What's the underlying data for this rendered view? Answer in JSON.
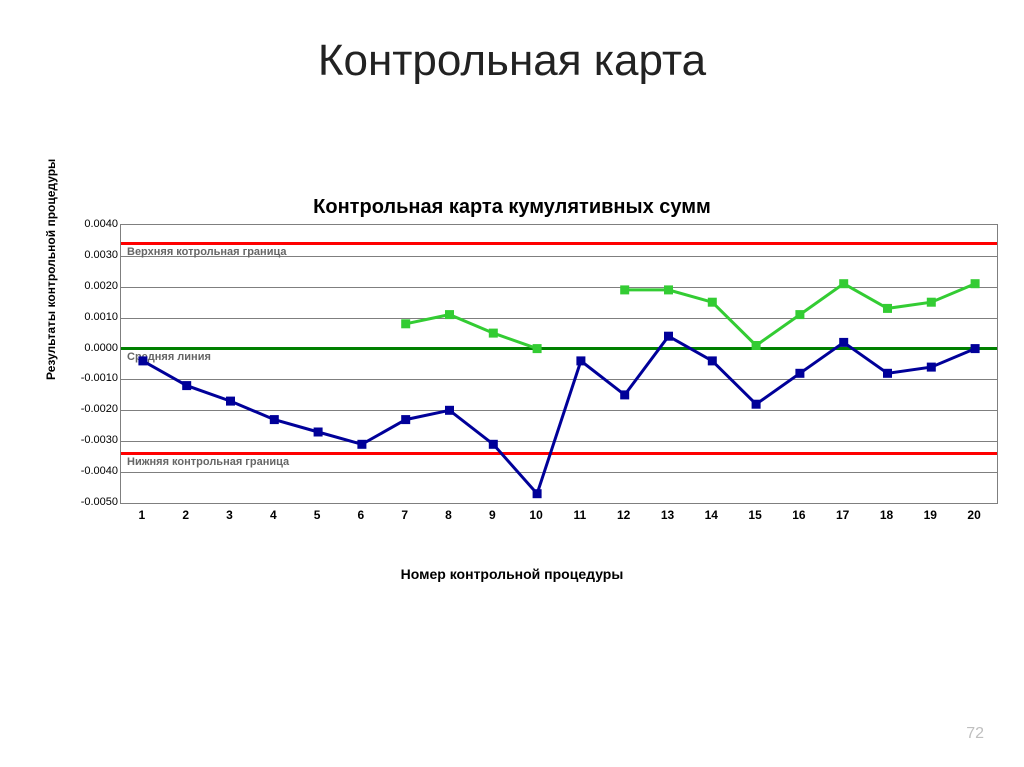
{
  "slide": {
    "title": "Контрольная карта",
    "page_number": "72"
  },
  "chart": {
    "type": "line",
    "title": "Контрольная карта кумулятивных сумм",
    "title_fontsize": 20,
    "x_axis_title": "Номер контрольной процедуры",
    "y_axis_title": "Результаты контрольной процедуры",
    "label_fontsize": 12,
    "background_color": "#ffffff",
    "grid_color": "#7f7f7f",
    "x_categories": [
      "1",
      "2",
      "3",
      "4",
      "5",
      "6",
      "7",
      "8",
      "9",
      "10",
      "11",
      "12",
      "13",
      "14",
      "15",
      "16",
      "17",
      "18",
      "19",
      "20"
    ],
    "x_min": 1,
    "x_max": 20,
    "y_ticks": [
      0.004,
      0.003,
      0.002,
      0.001,
      0.0,
      -0.001,
      -0.002,
      -0.003,
      -0.004,
      -0.005
    ],
    "y_tick_labels": [
      "0.0040",
      "0.0030",
      "0.0020",
      "0.0010",
      "0.0000",
      "-0.0010",
      "-0.0020",
      "-0.0030",
      "-0.0040",
      "-0.0050"
    ],
    "y_min": -0.005,
    "y_max": 0.004,
    "upper_limit": {
      "value": 0.0034,
      "color": "#ff0000",
      "width": 3,
      "label": "Верхняя котрольная граница"
    },
    "midline": {
      "value": 0.0,
      "color": "#008000",
      "width": 3,
      "label": "Средняя линия"
    },
    "lower_limit": {
      "value": -0.0034,
      "color": "#ff0000",
      "width": 3,
      "label": "Нижняя контрольная граница"
    },
    "series": [
      {
        "name": "series_green",
        "color": "#33cc33",
        "marker": "square",
        "marker_size": 9,
        "line_width": 3,
        "x_start": 7,
        "values": [
          0.0008,
          0.0011,
          0.0005,
          0.0,
          null,
          0.0019,
          0.0019,
          0.0015,
          0.0001,
          0.0011,
          0.0021,
          0.0013,
          0.0015,
          0.0021
        ]
      },
      {
        "name": "series_blue",
        "color": "#000099",
        "marker": "square",
        "marker_size": 9,
        "line_width": 3,
        "x_start": 1,
        "values": [
          -0.0004,
          -0.0012,
          -0.0017,
          -0.0023,
          -0.0027,
          -0.0031,
          -0.0023,
          -0.002,
          -0.0031,
          -0.0047,
          -0.0004,
          -0.0015,
          0.0004,
          -0.0004,
          -0.0018,
          -0.0008,
          0.0002,
          -0.0008,
          -0.0006,
          0.0
        ]
      }
    ]
  }
}
